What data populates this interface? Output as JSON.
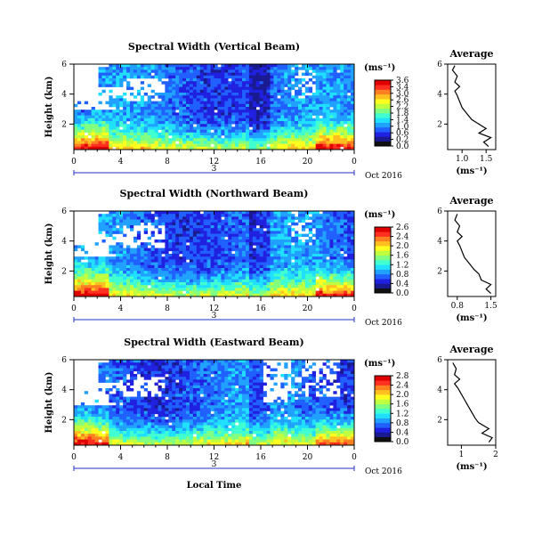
{
  "figure": {
    "xlabel": "Local Time",
    "date_label": "Oct 2016",
    "day_label": "3"
  },
  "colors": {
    "scale": [
      "#101010",
      "#1a1a90",
      "#2020e0",
      "#2060ff",
      "#20a0ff",
      "#20e0ff",
      "#40ffd0",
      "#80ff80",
      "#c0ff40",
      "#ffff20",
      "#ffc020",
      "#ff8020",
      "#ff3020",
      "#e00000"
    ]
  },
  "chart_data": [
    {
      "type": "heatmap",
      "title": "Spectral Width (Vertical Beam)",
      "ylabel": "Height (km)",
      "ylim": [
        0.3,
        6
      ],
      "xlim": [
        0,
        24
      ],
      "xticks": [
        "0",
        "4",
        "8",
        "12",
        "16",
        "20",
        "0"
      ],
      "yticks": [
        "2",
        "4",
        "6"
      ],
      "colorbar": {
        "unit": "(ms⁻¹)",
        "ticks": [
          "3.6",
          "3.4",
          "3.0",
          "2.6",
          "2.2",
          "1.8",
          "1.4",
          "1.0",
          "0.6",
          "0.2",
          "0.0"
        ]
      },
      "average": {
        "title": "Average",
        "xlabel": "(ms⁻¹)",
        "xticks": [
          "1.0",
          "1.5"
        ],
        "xlim": [
          0.7,
          1.7
        ],
        "yticks": [
          "2",
          "4",
          "6"
        ],
        "profile": [
          [
            1.55,
            0.5
          ],
          [
            1.45,
            0.8
          ],
          [
            1.6,
            1.1
          ],
          [
            1.35,
            1.4
          ],
          [
            1.5,
            1.7
          ],
          [
            1.35,
            2.0
          ],
          [
            1.2,
            2.3
          ],
          [
            1.1,
            2.7
          ],
          [
            1.0,
            3.1
          ],
          [
            0.95,
            3.5
          ],
          [
            0.9,
            3.9
          ],
          [
            0.85,
            4.2
          ],
          [
            0.95,
            4.5
          ],
          [
            0.85,
            4.8
          ],
          [
            0.9,
            5.2
          ],
          [
            0.8,
            5.6
          ],
          [
            0.85,
            5.9
          ]
        ]
      }
    },
    {
      "type": "heatmap",
      "title": "Spectral Width (Northward Beam)",
      "ylabel": "Height (km)",
      "ylim": [
        0.3,
        6
      ],
      "xlim": [
        0,
        24
      ],
      "xticks": [
        "0",
        "4",
        "8",
        "12",
        "16",
        "20",
        "0"
      ],
      "yticks": [
        "2",
        "4",
        "6"
      ],
      "colorbar": {
        "unit": "(ms⁻¹)",
        "ticks": [
          "2.6",
          "2.4",
          "2.0",
          "1.6",
          "1.2",
          "0.8",
          "0.4",
          "0.0"
        ]
      },
      "average": {
        "title": "Average",
        "xlabel": "(ms⁻¹)",
        "xticks": [
          "0.8",
          "1.5"
        ],
        "xlim": [
          0.6,
          1.6
        ],
        "yticks": [
          "2",
          "4",
          "6"
        ],
        "profile": [
          [
            1.5,
            0.5
          ],
          [
            1.4,
            0.8
          ],
          [
            1.5,
            1.1
          ],
          [
            1.3,
            1.4
          ],
          [
            1.25,
            1.8
          ],
          [
            1.15,
            2.1
          ],
          [
            1.05,
            2.5
          ],
          [
            0.95,
            2.9
          ],
          [
            0.9,
            3.3
          ],
          [
            0.85,
            3.7
          ],
          [
            0.8,
            4.0
          ],
          [
            0.9,
            4.3
          ],
          [
            0.8,
            4.6
          ],
          [
            0.85,
            5.0
          ],
          [
            0.75,
            5.4
          ],
          [
            0.8,
            5.8
          ]
        ]
      }
    },
    {
      "type": "heatmap",
      "title": "Spectral Width (Eastward Beam)",
      "ylabel": "Height (km)",
      "ylim": [
        0.3,
        6
      ],
      "xlim": [
        0,
        24
      ],
      "xticks": [
        "0",
        "4",
        "8",
        "12",
        "16",
        "20",
        "0"
      ],
      "yticks": [
        "2",
        "4",
        "6"
      ],
      "colorbar": {
        "unit": "(ms⁻¹)",
        "ticks": [
          "2.8",
          "2.4",
          "2.0",
          "1.6",
          "1.2",
          "0.8",
          "0.4",
          "0.0"
        ]
      },
      "average": {
        "title": "Average",
        "xlabel": "(ms⁻¹)",
        "xticks": [
          "1",
          "2"
        ],
        "xlim": [
          0.6,
          2.0
        ],
        "yticks": [
          "2",
          "4",
          "6"
        ],
        "profile": [
          [
            1.8,
            0.5
          ],
          [
            1.9,
            0.8
          ],
          [
            1.6,
            1.1
          ],
          [
            1.8,
            1.4
          ],
          [
            1.5,
            1.8
          ],
          [
            1.4,
            2.1
          ],
          [
            1.3,
            2.5
          ],
          [
            1.2,
            2.9
          ],
          [
            1.1,
            3.3
          ],
          [
            1.0,
            3.7
          ],
          [
            0.9,
            4.1
          ],
          [
            0.8,
            4.4
          ],
          [
            0.95,
            4.7
          ],
          [
            0.8,
            5.0
          ],
          [
            0.85,
            5.4
          ],
          [
            0.75,
            5.8
          ]
        ]
      }
    }
  ]
}
